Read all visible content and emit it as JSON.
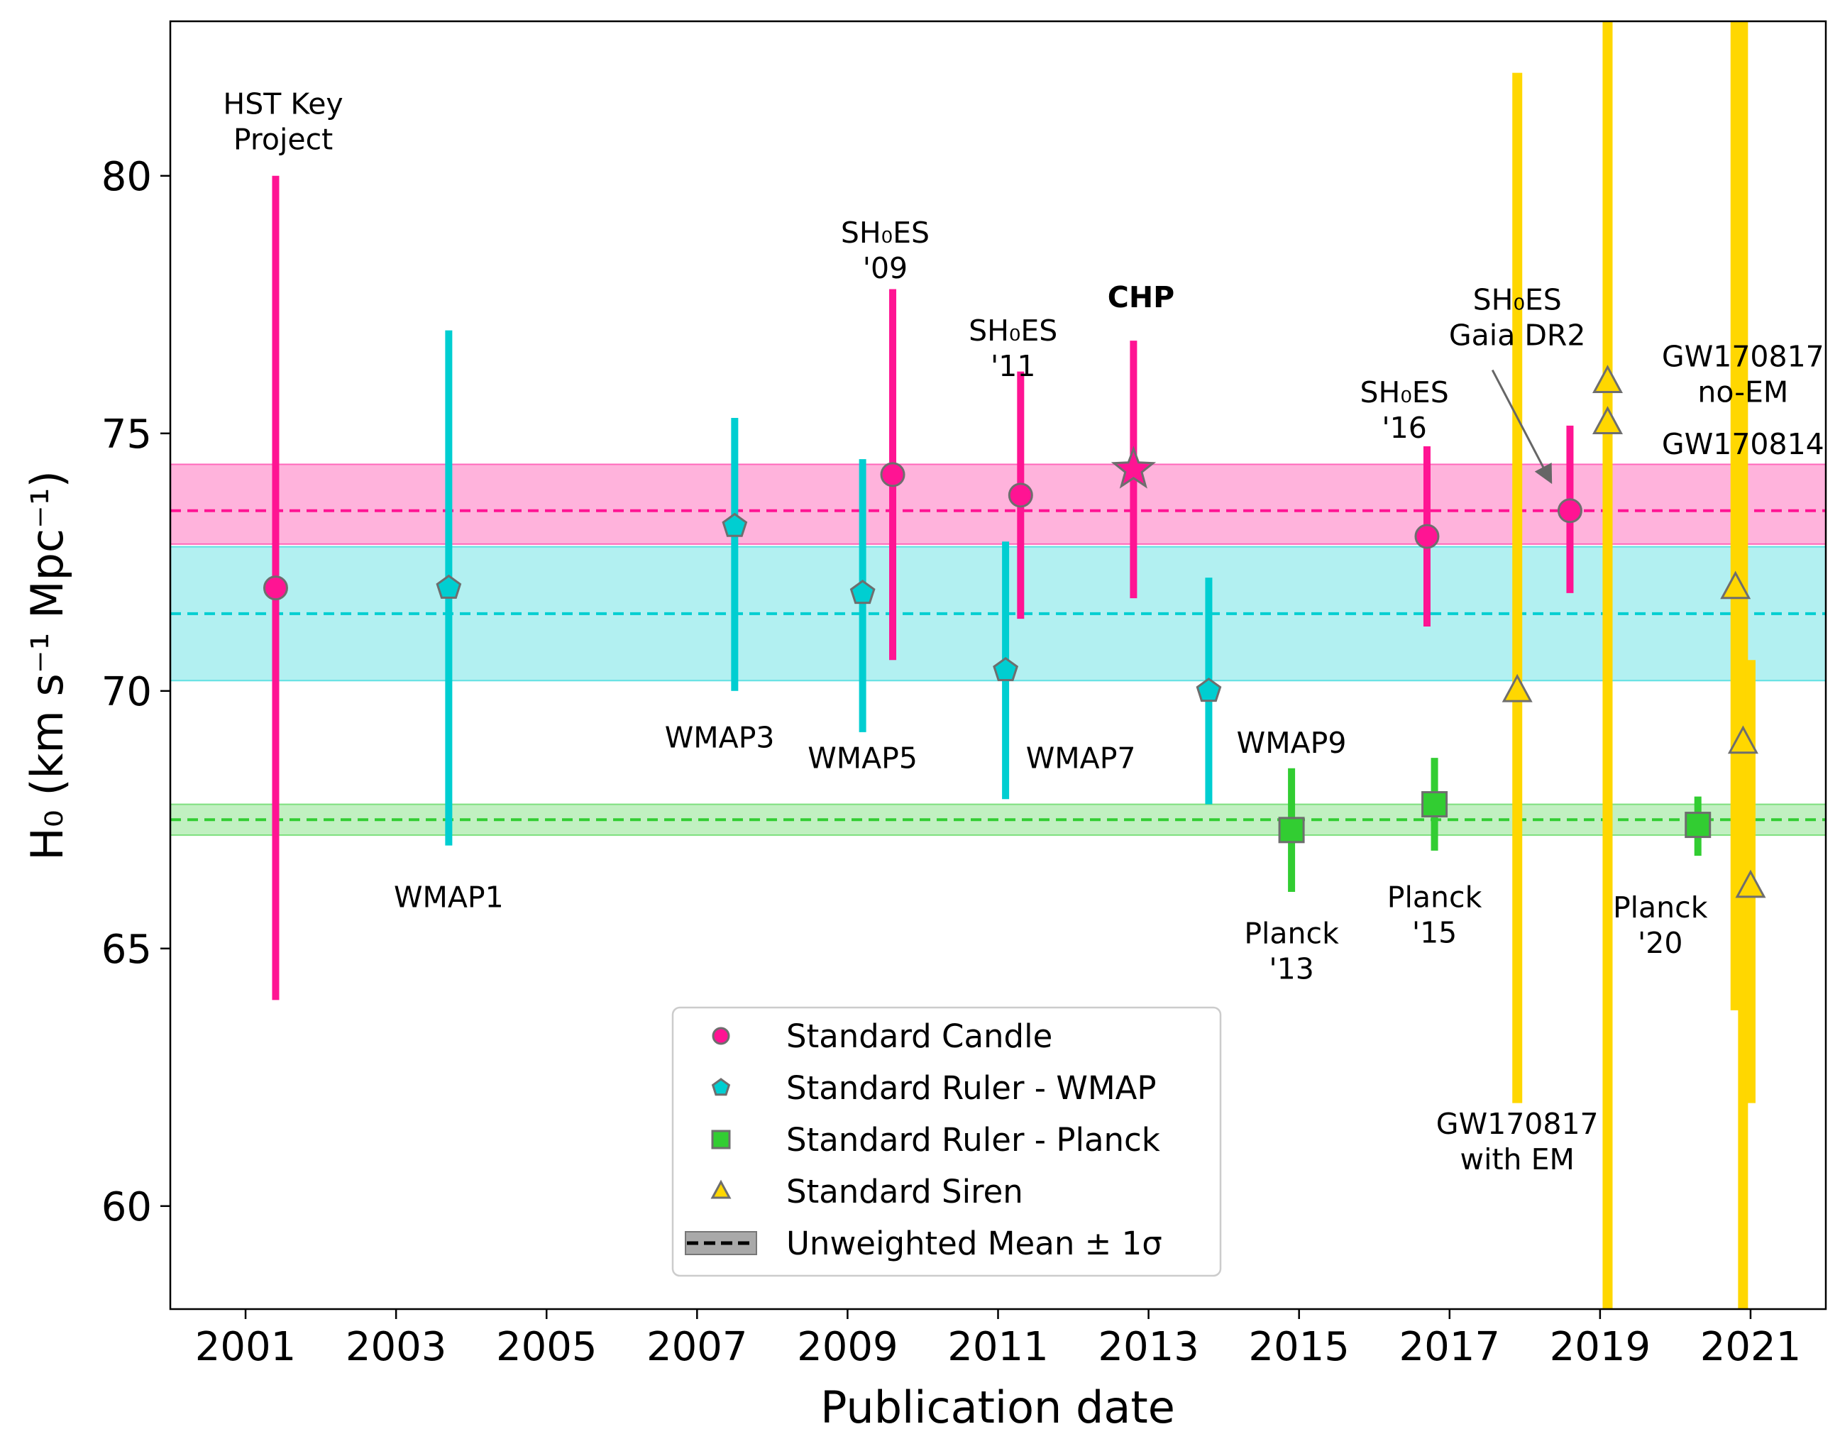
{
  "chart_data": {
    "type": "scatter",
    "xlabel": "Publication date",
    "ylabel": "H₀ (km s⁻¹ Mpc⁻¹)",
    "xlim": [
      2000.0,
      2022.0
    ],
    "ylim": [
      58.0,
      83.0
    ],
    "xticks": [
      "2001",
      "2003",
      "2005",
      "2007",
      "2009",
      "2011",
      "2013",
      "2015",
      "2017",
      "2019",
      "2021"
    ],
    "yticks": [
      "60",
      "65",
      "70",
      "75",
      "80"
    ],
    "grid": false,
    "legend_position": "lower center",
    "colors": {
      "candle": "#ff1493",
      "wmap": "#00ced1",
      "planck": "#32cd32",
      "siren": "#ffd700",
      "edge": "#6e6e6e"
    },
    "means": [
      {
        "series": "Standard Candle",
        "mean": 73.5,
        "band": [
          72.85,
          74.4
        ]
      },
      {
        "series": "Standard Ruler - WMAP",
        "mean": 71.5,
        "band": [
          70.2,
          72.8
        ]
      },
      {
        "series": "Standard Ruler - Planck",
        "mean": 67.5,
        "band": [
          67.2,
          67.8
        ]
      }
    ],
    "series": [
      {
        "name": "Standard Candle",
        "marker": "circle",
        "points": [
          {
            "x": 2001.4,
            "y": 72.0,
            "lo": 64.0,
            "hi": 80.0,
            "label": "HST Key Project"
          },
          {
            "x": 2009.6,
            "y": 74.2,
            "lo": 70.6,
            "hi": 77.8,
            "label": "SH₀ES '09"
          },
          {
            "x": 2011.3,
            "y": 73.8,
            "lo": 71.4,
            "hi": 76.2,
            "label": "SH₀ES '11"
          },
          {
            "x": 2012.8,
            "y": 74.3,
            "lo": 71.8,
            "hi": 76.8,
            "label": "CHP",
            "star": true
          },
          {
            "x": 2016.7,
            "y": 73.0,
            "lo": 71.25,
            "hi": 74.75,
            "label": "SH₀ES '16"
          },
          {
            "x": 2018.6,
            "y": 73.5,
            "lo": 71.9,
            "hi": 75.15,
            "label": "SH₀ES Gaia DR2"
          }
        ]
      },
      {
        "name": "Standard Ruler - WMAP",
        "marker": "pentagon",
        "points": [
          {
            "x": 2003.7,
            "y": 72.0,
            "lo": 67.0,
            "hi": 77.0,
            "label": "WMAP1"
          },
          {
            "x": 2007.5,
            "y": 73.2,
            "lo": 70.0,
            "hi": 75.3,
            "label": "WMAP3"
          },
          {
            "x": 2009.2,
            "y": 71.9,
            "lo": 69.2,
            "hi": 74.5,
            "label": "WMAP5"
          },
          {
            "x": 2011.1,
            "y": 70.4,
            "lo": 67.9,
            "hi": 72.9,
            "label": "WMAP7"
          },
          {
            "x": 2013.8,
            "y": 70.0,
            "lo": 67.8,
            "hi": 72.2,
            "label": "WMAP9"
          }
        ]
      },
      {
        "name": "Standard Ruler - Planck",
        "marker": "square",
        "points": [
          {
            "x": 2014.9,
            "y": 67.3,
            "lo": 66.1,
            "hi": 68.5,
            "label": "Planck '13"
          },
          {
            "x": 2016.8,
            "y": 67.8,
            "lo": 66.9,
            "hi": 68.7,
            "label": "Planck '15"
          },
          {
            "x": 2020.3,
            "y": 67.4,
            "lo": 66.8,
            "hi": 67.95,
            "label": "Planck '20"
          }
        ]
      },
      {
        "name": "Standard Siren",
        "marker": "triangle",
        "points": [
          {
            "x": 2017.9,
            "y": 70.0,
            "lo": 62.0,
            "hi": 82.0,
            "label": "GW170817 with EM"
          },
          {
            "x": 2019.1,
            "y": 76.0,
            "lo": 58.0,
            "hi": 83.0
          },
          {
            "x": 2019.1,
            "y": 75.2,
            "lo": 58.0,
            "hi": 83.0
          },
          {
            "x": 2020.8,
            "y": 72.0,
            "lo": 63.8,
            "hi": 83.0,
            "label": "GW170817 no-EM"
          },
          {
            "x": 2020.9,
            "y": 69.0,
            "lo": 58.0,
            "hi": 83.0,
            "label": "GW170814"
          },
          {
            "x": 2021.0,
            "y": 66.2,
            "lo": 62.0,
            "hi": 70.6
          }
        ]
      }
    ],
    "legend": [
      {
        "label": "Standard Candle",
        "marker": "circle",
        "color": "#ff1493"
      },
      {
        "label": "Standard Ruler - WMAP",
        "marker": "pentagon",
        "color": "#00ced1"
      },
      {
        "label": "Standard Ruler - Planck",
        "marker": "square",
        "color": "#32cd32"
      },
      {
        "label": "Standard Siren",
        "marker": "triangle",
        "color": "#ffd700"
      },
      {
        "label": "Unweighted Mean ± 1σ",
        "marker": "meanline",
        "color": "#000000"
      }
    ],
    "annotations": [
      {
        "lines": [
          "HST Key",
          "Project"
        ],
        "x": 2001.5,
        "y": 81.2
      },
      {
        "lines": [
          "SH₀ES",
          "'09"
        ],
        "x": 2009.5,
        "y": 78.7
      },
      {
        "lines": [
          "SH₀ES",
          "'11"
        ],
        "x": 2011.2,
        "y": 76.8
      },
      {
        "lines": [
          "CHP"
        ],
        "x": 2012.9,
        "y": 77.45,
        "bold": true
      },
      {
        "lines": [
          "SH₀ES",
          "'16"
        ],
        "x": 2016.4,
        "y": 75.6
      },
      {
        "lines": [
          "SH₀ES",
          "Gaia DR2"
        ],
        "x": 2017.9,
        "y": 77.4,
        "arrow_to": [
          2018.35,
          74.05
        ]
      },
      {
        "lines": [
          "GW170817",
          "no-EM"
        ],
        "x": 2020.9,
        "y": 76.3
      },
      {
        "lines": [
          "GW170814"
        ],
        "x": 2020.9,
        "y": 74.6
      },
      {
        "lines": [
          "WMAP1"
        ],
        "x": 2003.7,
        "y": 65.8
      },
      {
        "lines": [
          "WMAP3"
        ],
        "x": 2007.3,
        "y": 68.9
      },
      {
        "lines": [
          "WMAP5"
        ],
        "x": 2009.2,
        "y": 68.5
      },
      {
        "lines": [
          "WMAP7"
        ],
        "x": 2012.1,
        "y": 68.5
      },
      {
        "lines": [
          "WMAP9"
        ],
        "x": 2014.9,
        "y": 68.8
      },
      {
        "lines": [
          "Planck",
          "'13"
        ],
        "x": 2014.9,
        "y": 65.1
      },
      {
        "lines": [
          "Planck",
          "'15"
        ],
        "x": 2016.8,
        "y": 65.8
      },
      {
        "lines": [
          "Planck",
          "'20"
        ],
        "x": 2019.8,
        "y": 65.6
      },
      {
        "lines": [
          "GW170817",
          "with EM"
        ],
        "x": 2017.9,
        "y": 61.4
      }
    ]
  }
}
